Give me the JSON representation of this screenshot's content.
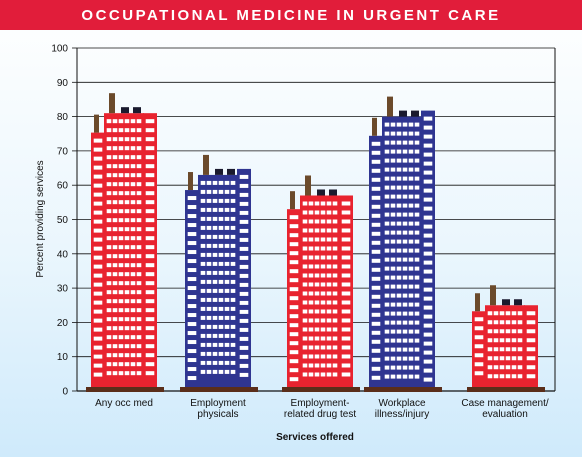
{
  "title": "OCCUPATIONAL MEDICINE IN URGENT CARE",
  "colors": {
    "header": "#e11d3a",
    "red_building": "#e8232f",
    "blue_building": "#2f3591",
    "window_white": "#ffffff",
    "chimney": "#6b4a2b",
    "ground": "#5a2e1a",
    "dark": "#1a1a2e"
  },
  "chart_data": {
    "type": "bar",
    "title": "OCCUPATIONAL MEDICINE IN URGENT CARE",
    "xlabel": "Services offered",
    "ylabel": "Percent providing services",
    "ylim": [
      0,
      100
    ],
    "yticks": [
      0,
      10,
      20,
      30,
      40,
      50,
      60,
      70,
      80,
      90,
      100
    ],
    "grid": true,
    "categories": [
      [
        "Any occ med"
      ],
      [
        "Employment",
        "physicals"
      ],
      [
        "Employment-",
        "related drug test"
      ],
      [
        "Workplace",
        "illness/injury"
      ],
      [
        "Case management/",
        "evaluation"
      ]
    ],
    "values": [
      81,
      63,
      57,
      80,
      25
    ],
    "bar_colors": [
      "red",
      "blue",
      "red",
      "blue",
      "red"
    ]
  }
}
